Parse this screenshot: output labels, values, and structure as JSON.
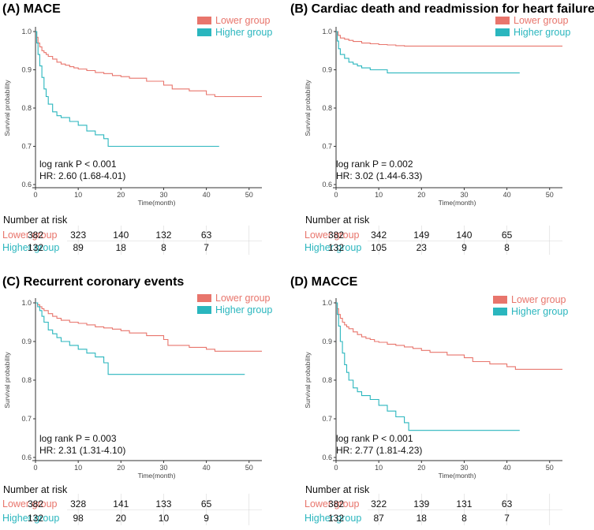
{
  "colors": {
    "lower": "#E8756C",
    "higher": "#2AB6BE",
    "axis": "#333333",
    "grid": "#d8d8d8"
  },
  "chart_data": [
    {
      "type": "line",
      "title": "(A) MACE",
      "xlabel": "Time(month)",
      "ylabel": "Survival probability",
      "xlim": [
        0,
        53
      ],
      "ylim": [
        0.6,
        1.0
      ],
      "xticks": [
        0,
        10,
        20,
        30,
        40,
        50
      ],
      "yticks": [
        0.6,
        0.7,
        0.8,
        0.9,
        1.0
      ],
      "xtick_labels": [
        "0",
        "10",
        "20",
        "30",
        "40",
        "50"
      ],
      "ytick_labels": [
        "0.6",
        "0.7",
        "0.8",
        "0.9",
        "1.0"
      ],
      "legend_position": "top-right",
      "stat": {
        "logrank": "log rank P < 0.001",
        "hr": "HR: 2.60 (1.68-4.01)"
      },
      "series": [
        {
          "name": "Lower group",
          "color_key": "lower",
          "x": [
            0,
            0.3,
            0.6,
            1,
            1.5,
            2,
            2.5,
            3,
            4,
            5,
            6,
            7,
            8,
            9,
            10,
            12,
            14,
            16,
            18,
            20,
            22,
            26,
            30,
            32,
            36,
            40,
            42,
            53
          ],
          "y": [
            1.0,
            0.985,
            0.97,
            0.96,
            0.95,
            0.945,
            0.94,
            0.935,
            0.928,
            0.92,
            0.915,
            0.912,
            0.908,
            0.905,
            0.902,
            0.898,
            0.893,
            0.89,
            0.885,
            0.882,
            0.878,
            0.87,
            0.86,
            0.85,
            0.845,
            0.835,
            0.83,
            0.83
          ]
        },
        {
          "name": "Higher group",
          "color_key": "higher",
          "x": [
            0,
            0.3,
            0.6,
            1,
            1.5,
            2,
            2.5,
            3,
            4,
            5,
            6,
            8,
            10,
            12,
            14,
            16,
            17,
            43
          ],
          "y": [
            1.0,
            0.97,
            0.94,
            0.91,
            0.88,
            0.85,
            0.83,
            0.81,
            0.79,
            0.78,
            0.775,
            0.765,
            0.755,
            0.74,
            0.73,
            0.72,
            0.7,
            0.7
          ]
        }
      ],
      "risk_table": {
        "title": "Number at risk",
        "rows": [
          {
            "label": "Lower group",
            "color_key": "lower",
            "values": [
              "382",
              "323",
              "140",
              "132",
              "63"
            ]
          },
          {
            "label": "Higher group",
            "color_key": "higher",
            "values": [
              "132",
              "89",
              "18",
              "8",
              "7"
            ]
          }
        ]
      }
    },
    {
      "type": "line",
      "title": "(B) Cardiac death and readmission for heart failure",
      "xlabel": "Time(month)",
      "ylabel": "Survival probability",
      "xlim": [
        0,
        53
      ],
      "ylim": [
        0.6,
        1.0
      ],
      "xticks": [
        0,
        10,
        20,
        30,
        40,
        50
      ],
      "yticks": [
        0.6,
        0.7,
        0.8,
        0.9,
        1.0
      ],
      "xtick_labels": [
        "0",
        "10",
        "20",
        "30",
        "40",
        "50"
      ],
      "ytick_labels": [
        "0.6",
        "0.7",
        "0.8",
        "0.9",
        "1.0"
      ],
      "legend_position": "top-right",
      "stat": {
        "logrank": "log rank P = 0.002",
        "hr": "HR: 3.02 (1.44-6.33)"
      },
      "series": [
        {
          "name": "Lower group",
          "color_key": "lower",
          "x": [
            0,
            0.5,
            1,
            2,
            3,
            4,
            6,
            8,
            10,
            12,
            14,
            16,
            53
          ],
          "y": [
            1.0,
            0.99,
            0.983,
            0.98,
            0.977,
            0.974,
            0.97,
            0.968,
            0.966,
            0.965,
            0.963,
            0.962,
            0.962
          ]
        },
        {
          "name": "Higher group",
          "color_key": "higher",
          "x": [
            0,
            0.3,
            0.6,
            1,
            2,
            3,
            4,
            5,
            6,
            8,
            10,
            12,
            43
          ],
          "y": [
            1.0,
            0.975,
            0.955,
            0.94,
            0.93,
            0.92,
            0.915,
            0.91,
            0.905,
            0.9,
            0.9,
            0.892,
            0.892
          ]
        }
      ],
      "risk_table": {
        "title": "Number at risk",
        "rows": [
          {
            "label": "Lower group",
            "color_key": "lower",
            "values": [
              "382",
              "342",
              "149",
              "140",
              "65"
            ]
          },
          {
            "label": "Higher group",
            "color_key": "higher",
            "values": [
              "132",
              "105",
              "23",
              "9",
              "8"
            ]
          }
        ]
      }
    },
    {
      "type": "line",
      "title": "(C) Recurrent coronary events",
      "xlabel": "Time(month)",
      "ylabel": "Survival probability",
      "xlim": [
        0,
        53
      ],
      "ylim": [
        0.6,
        1.0
      ],
      "xticks": [
        0,
        10,
        20,
        30,
        40,
        50
      ],
      "yticks": [
        0.6,
        0.7,
        0.8,
        0.9,
        1.0
      ],
      "xtick_labels": [
        "0",
        "10",
        "20",
        "30",
        "40",
        "50"
      ],
      "ytick_labels": [
        "0.6",
        "0.7",
        "0.8",
        "0.9",
        "1.0"
      ],
      "legend_position": "top-right",
      "stat": {
        "logrank": "log rank P = 0.003",
        "hr": "HR: 2.31 (1.31-4.10)"
      },
      "series": [
        {
          "name": "Lower group",
          "color_key": "lower",
          "x": [
            0,
            0.5,
            1,
            1.5,
            2,
            3,
            4,
            5,
            6,
            8,
            10,
            12,
            14,
            16,
            18,
            20,
            22,
            26,
            30,
            31,
            36,
            40,
            42,
            53
          ],
          "y": [
            1.0,
            0.995,
            0.99,
            0.985,
            0.98,
            0.972,
            0.965,
            0.96,
            0.955,
            0.95,
            0.947,
            0.943,
            0.938,
            0.935,
            0.932,
            0.928,
            0.922,
            0.915,
            0.905,
            0.89,
            0.885,
            0.88,
            0.875,
            0.875
          ]
        },
        {
          "name": "Higher group",
          "color_key": "higher",
          "x": [
            0,
            0.5,
            1,
            1.5,
            2,
            3,
            4,
            5,
            6,
            8,
            10,
            12,
            14,
            16,
            17,
            49
          ],
          "y": [
            1.0,
            0.99,
            0.98,
            0.965,
            0.95,
            0.93,
            0.92,
            0.91,
            0.9,
            0.89,
            0.88,
            0.87,
            0.86,
            0.845,
            0.815,
            0.815
          ]
        }
      ],
      "risk_table": {
        "title": "Number at risk",
        "rows": [
          {
            "label": "Lower group",
            "color_key": "lower",
            "values": [
              "382",
              "328",
              "141",
              "133",
              "65"
            ]
          },
          {
            "label": "Higher group",
            "color_key": "higher",
            "values": [
              "132",
              "98",
              "20",
              "10",
              "9"
            ]
          }
        ]
      }
    },
    {
      "type": "line",
      "title": "(D) MACCE",
      "xlabel": "Time(month)",
      "ylabel": "Survival probability",
      "xlim": [
        0,
        53
      ],
      "ylim": [
        0.6,
        1.0
      ],
      "xticks": [
        0,
        10,
        20,
        30,
        40,
        50
      ],
      "yticks": [
        0.6,
        0.7,
        0.8,
        0.9,
        1.0
      ],
      "xtick_labels": [
        "0",
        "10",
        "20",
        "30",
        "40",
        "50"
      ],
      "ytick_labels": [
        "0.6",
        "0.7",
        "0.8",
        "0.9",
        "1.0"
      ],
      "legend_position": "top-right",
      "stat": {
        "logrank": "log rank P < 0.001",
        "hr": "HR: 2.77 (1.81-4.23)"
      },
      "series": [
        {
          "name": "Lower group",
          "color_key": "lower",
          "x": [
            0,
            0.3,
            0.6,
            1,
            1.5,
            2,
            2.5,
            3,
            4,
            5,
            6,
            7,
            8,
            9,
            10,
            12,
            14,
            16,
            18,
            20,
            22,
            26,
            30,
            32,
            36,
            40,
            42,
            53
          ],
          "y": [
            1.0,
            0.985,
            0.97,
            0.96,
            0.95,
            0.943,
            0.938,
            0.933,
            0.925,
            0.918,
            0.912,
            0.908,
            0.905,
            0.9,
            0.898,
            0.893,
            0.89,
            0.886,
            0.882,
            0.877,
            0.872,
            0.865,
            0.858,
            0.848,
            0.842,
            0.835,
            0.828,
            0.828
          ]
        },
        {
          "name": "Higher group",
          "color_key": "higher",
          "x": [
            0,
            0.3,
            0.6,
            1,
            1.5,
            2,
            2.5,
            3,
            4,
            5,
            6,
            8,
            10,
            12,
            14,
            16,
            17,
            43
          ],
          "y": [
            1.0,
            0.97,
            0.94,
            0.9,
            0.87,
            0.84,
            0.82,
            0.8,
            0.78,
            0.77,
            0.76,
            0.75,
            0.735,
            0.72,
            0.705,
            0.69,
            0.67,
            0.67
          ]
        }
      ],
      "risk_table": {
        "title": "Number at risk",
        "rows": [
          {
            "label": "Lower group",
            "color_key": "lower",
            "values": [
              "382",
              "322",
              "139",
              "131",
              "63"
            ]
          },
          {
            "label": "Higher group",
            "color_key": "higher",
            "values": [
              "132",
              "87",
              "18",
              "8",
              "7"
            ]
          }
        ]
      }
    }
  ]
}
